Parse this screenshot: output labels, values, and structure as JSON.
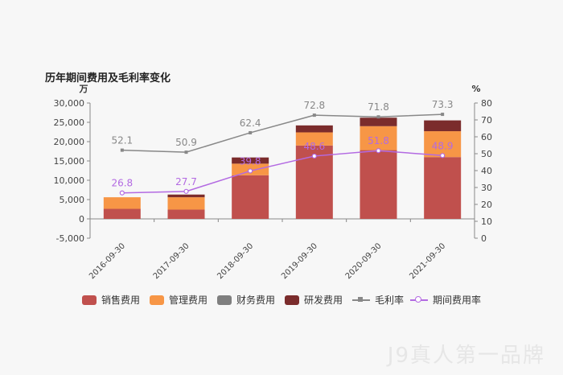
{
  "chart_data": {
    "type": "bar",
    "title": "历年期间费用及毛利率变化",
    "categories": [
      "2016-09-30",
      "2017-09-30",
      "2018-09-30",
      "2019-09-30",
      "2020-09-30",
      "2021-09-30"
    ],
    "y_left": {
      "unit": "万",
      "ylim": [
        -5000,
        30000
      ],
      "ticks": [
        "30,000",
        "25,000",
        "20,000",
        "15,000",
        "10,000",
        "5,000",
        "0",
        "-5,000"
      ],
      "tick_values": [
        30000,
        25000,
        20000,
        15000,
        10000,
        5000,
        0,
        -5000
      ]
    },
    "y_right": {
      "unit": "%",
      "ylim": [
        0,
        80
      ],
      "ticks": [
        "80",
        "70",
        "60",
        "50",
        "40",
        "30",
        "20",
        "10",
        "0"
      ],
      "tick_values": [
        80,
        70,
        60,
        50,
        40,
        30,
        20,
        10,
        0
      ]
    },
    "stacked_series": [
      {
        "name": "销售费用",
        "color": "#c0504d",
        "values": [
          2600,
          2400,
          11300,
          19000,
          17800,
          16000
        ]
      },
      {
        "name": "管理费用",
        "color": "#f79646",
        "values": [
          3000,
          3200,
          3000,
          3400,
          6200,
          6700
        ]
      },
      {
        "name": "财务费用",
        "color": "#7f7f7f",
        "values": [
          0,
          0,
          0,
          0,
          0,
          0
        ]
      },
      {
        "name": "研发费用",
        "color": "#7b2c2c",
        "values": [
          0,
          700,
          1600,
          1800,
          2200,
          2800
        ]
      }
    ],
    "line_series": [
      {
        "name": "毛利率",
        "color": "#888888",
        "values": [
          52.1,
          50.9,
          62.4,
          72.8,
          71.8,
          73.3
        ],
        "labels": [
          "52.1",
          "50.9",
          "62.4",
          "72.8",
          "71.8",
          "73.3"
        ]
      },
      {
        "name": "期间费用率",
        "color": "#b36ae2",
        "values": [
          26.8,
          27.7,
          39.8,
          48.6,
          51.8,
          48.9
        ],
        "labels": [
          "26.8",
          "27.7",
          "39.8",
          "48.6",
          "51.8",
          "48.9"
        ]
      }
    ],
    "legend_position": "bottom",
    "grid": false
  },
  "watermark": "J9真人第一品牌"
}
